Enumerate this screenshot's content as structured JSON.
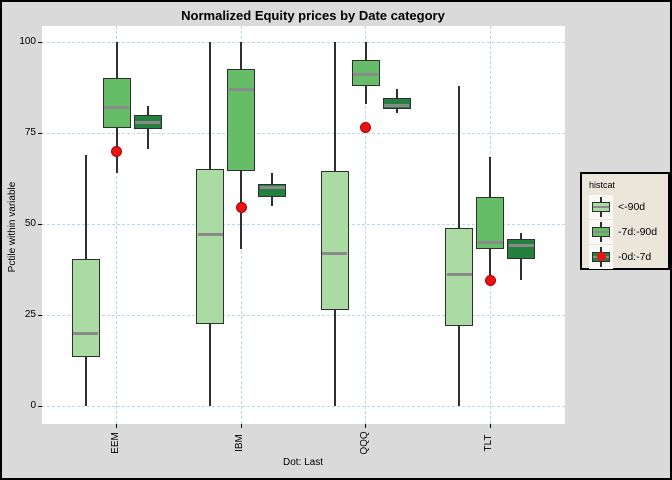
{
  "title": "Normalized Equity prices by Date category",
  "y_axis_title": "Pctile within variable",
  "x_axis_title": "Dot: Last",
  "legend": {
    "title": "histcat",
    "entries": [
      {
        "label": "<-90d",
        "color": "#a9dba3",
        "dot": false
      },
      {
        "label": "-7d:-90d",
        "color": "#65bd68",
        "dot": false
      },
      {
        "label": "-0d:-7d",
        "color": "#24803f",
        "dot": true
      }
    ]
  },
  "colors": {
    "figure_bg": "#dadada",
    "panel_bg": "#ffffff",
    "grid": "#b5dbe9",
    "box_border": "#2f2f2f",
    "median": "#8a8a8a",
    "dot": "#e81313",
    "legend_bg": "#ebe6da"
  },
  "chart_data": {
    "type": "boxplot",
    "title": "Normalized Equity prices by Date category",
    "xlabel": "Dot: Last",
    "ylabel": "Pctile within variable",
    "categories": [
      "EEM",
      "IBM",
      "QQQ",
      "TLT"
    ],
    "y_ticks": [
      0,
      25,
      50,
      75,
      100
    ],
    "ylim": [
      0,
      100
    ],
    "grid": "dashed light-blue, horizontal at y ticks and vertical at categories",
    "legend_position": "right, boxed",
    "series": [
      {
        "name": "<-90d",
        "color": "#a9dba3",
        "boxes": [
          {
            "category": "EEM",
            "low": 0,
            "q1": 13.5,
            "median": 20,
            "q3": 40.5,
            "high": 69
          },
          {
            "category": "IBM",
            "low": 0,
            "q1": 22.5,
            "median": 47,
            "q3": 65,
            "high": 100
          },
          {
            "category": "QQQ",
            "low": 0,
            "q1": 26.5,
            "median": 42,
            "q3": 64.5,
            "high": 100
          },
          {
            "category": "TLT",
            "low": 0,
            "q1": 22,
            "median": 36,
            "q3": 49,
            "high": 88
          }
        ]
      },
      {
        "name": "-7d:-90d",
        "color": "#65bd68",
        "boxes": [
          {
            "category": "EEM",
            "low": 64,
            "q1": 76.5,
            "median": 82,
            "q3": 90,
            "high": 100
          },
          {
            "category": "IBM",
            "low": 43,
            "q1": 64.5,
            "median": 87,
            "q3": 92.5,
            "high": 100
          },
          {
            "category": "QQQ",
            "low": 83,
            "q1": 88,
            "median": 91,
            "q3": 95,
            "high": 100
          },
          {
            "category": "TLT",
            "low": 34,
            "q1": 43,
            "median": 45,
            "q3": 57.5,
            "high": 68.5
          }
        ]
      },
      {
        "name": "-0d:-7d",
        "color": "#24803f",
        "boxes": [
          {
            "category": "EEM",
            "low": 70.5,
            "q1": 76,
            "median": 78,
            "q3": 80,
            "high": 82.5
          },
          {
            "category": "IBM",
            "low": 55,
            "q1": 57.5,
            "median": 60,
            "q3": 61,
            "high": 64
          },
          {
            "category": "QQQ",
            "low": 80.5,
            "q1": 81.5,
            "median": 82.5,
            "q3": 84.5,
            "high": 87
          },
          {
            "category": "TLT",
            "low": 34.5,
            "q1": 40.5,
            "median": 44,
            "q3": 46,
            "high": 47.5
          }
        ]
      }
    ],
    "dots": {
      "name": "Last",
      "color": "#e81313",
      "values": [
        {
          "category": "EEM",
          "value": 70
        },
        {
          "category": "IBM",
          "value": 54.5
        },
        {
          "category": "QQQ",
          "value": 76.5
        },
        {
          "category": "TLT",
          "value": 34.5
        }
      ]
    }
  }
}
